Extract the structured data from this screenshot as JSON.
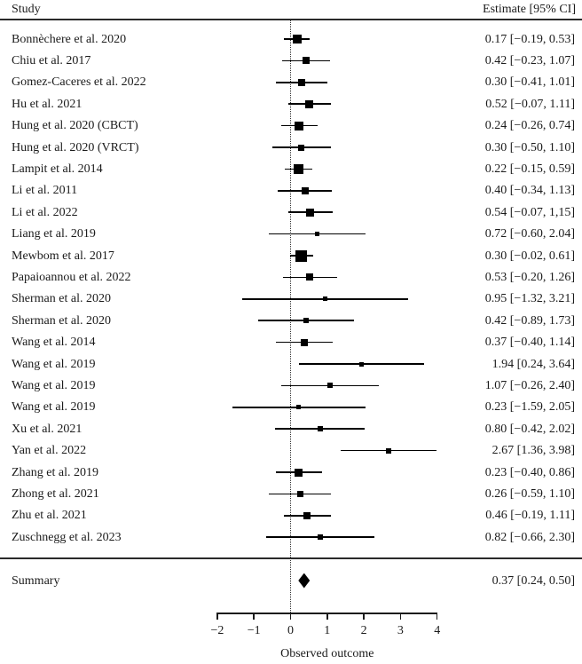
{
  "chart_data": {
    "type": "forest",
    "columns": {
      "study": "Study",
      "estimate": "Estimate [95% CI]"
    },
    "axis": {
      "xlabel": "Observed outcome",
      "tick_values": [
        -2,
        -1,
        0,
        1,
        2,
        3,
        4
      ],
      "tick_labels": [
        "−2",
        "−1",
        "0",
        "1",
        "2",
        "3",
        "4"
      ],
      "range": [
        -2,
        4
      ],
      "reference_line": 0
    },
    "studies": [
      {
        "name": "Bonnèchere et al. 2020",
        "estimate": 0.17,
        "ci": [
          -0.19,
          0.53
        ],
        "display": "0.17 [−0.19, 0.53]",
        "marker_size": 10
      },
      {
        "name": "Chiu et al. 2017",
        "estimate": 0.42,
        "ci": [
          -0.23,
          1.07
        ],
        "display": "0.42 [−0.23, 1.07]",
        "marker_size": 8
      },
      {
        "name": "Gomez-Caceres et al. 2022",
        "estimate": 0.3,
        "ci": [
          -0.41,
          1.01
        ],
        "display": "0.30 [−0.41, 1.01]",
        "marker_size": 8
      },
      {
        "name": "Hu et al. 2021",
        "estimate": 0.52,
        "ci": [
          -0.07,
          1.11
        ],
        "display": "0.52 [−0.07, 1.11]",
        "marker_size": 9
      },
      {
        "name": "Hung et al. 2020 (CBCT)",
        "estimate": 0.24,
        "ci": [
          -0.26,
          0.74
        ],
        "display": "0.24 [−0.26, 0.74]",
        "marker_size": 10
      },
      {
        "name": "Hung et al. 2020 (VRCT)",
        "estimate": 0.3,
        "ci": [
          -0.5,
          1.1
        ],
        "display": "0.30 [−0.50, 1.10]",
        "marker_size": 7
      },
      {
        "name": "Lampit et al. 2014",
        "estimate": 0.22,
        "ci": [
          -0.15,
          0.59
        ],
        "display": "0.22 [−0.15, 0.59]",
        "marker_size": 11
      },
      {
        "name": "Li et al. 2011",
        "estimate": 0.4,
        "ci": [
          -0.34,
          1.13
        ],
        "display": "0.40 [−0.34, 1.13]",
        "marker_size": 8
      },
      {
        "name": "Li et al. 2022",
        "estimate": 0.54,
        "ci": [
          -0.07,
          1.15
        ],
        "display": "0.54 [−0.07, 1,15]",
        "marker_size": 9
      },
      {
        "name": "Liang et al. 2019",
        "estimate": 0.72,
        "ci": [
          -0.6,
          2.04
        ],
        "display": "0.72 [−0.60, 2.04]",
        "marker_size": 5
      },
      {
        "name": "Mewbom et al. 2017",
        "estimate": 0.3,
        "ci": [
          -0.02,
          0.61
        ],
        "display": "0.30 [−0.02, 0.61]",
        "marker_size": 13
      },
      {
        "name": "Papaioannou et al. 2022",
        "estimate": 0.53,
        "ci": [
          -0.2,
          1.26
        ],
        "display": "0.53 [−0.20, 1.26]",
        "marker_size": 8
      },
      {
        "name": "Sherman et al. 2020",
        "estimate": 0.95,
        "ci": [
          -1.32,
          3.21
        ],
        "display": "0.95 [−1.32, 3.21]",
        "marker_size": 5
      },
      {
        "name": "Sherman et al. 2020",
        "estimate": 0.42,
        "ci": [
          -0.89,
          1.73
        ],
        "display": "0.42 [−0.89, 1.73]",
        "marker_size": 6
      },
      {
        "name": "Wang et al. 2014",
        "estimate": 0.37,
        "ci": [
          -0.4,
          1.14
        ],
        "display": "0.37 [−0.40, 1.14]",
        "marker_size": 8
      },
      {
        "name": "Wang et al. 2019",
        "estimate": 1.94,
        "ci": [
          0.24,
          3.64
        ],
        "display": "1.94 [0.24, 3.64]",
        "marker_size": 5
      },
      {
        "name": "Wang et al. 2019",
        "estimate": 1.07,
        "ci": [
          -0.26,
          2.4
        ],
        "display": "1.07 [−0.26, 2.40]",
        "marker_size": 6
      },
      {
        "name": "Wang et al. 2019",
        "estimate": 0.23,
        "ci": [
          -1.59,
          2.05
        ],
        "display": "0.23 [−1.59, 2.05]",
        "marker_size": 5
      },
      {
        "name": "Xu et al. 2021",
        "estimate": 0.8,
        "ci": [
          -0.42,
          2.02
        ],
        "display": "0.80 [−0.42, 2.02]",
        "marker_size": 6
      },
      {
        "name": "Yan et al. 2022",
        "estimate": 2.67,
        "ci": [
          1.36,
          3.98
        ],
        "display": "2.67 [1.36, 3.98]",
        "marker_size": 6
      },
      {
        "name": "Zhang et al. 2019",
        "estimate": 0.23,
        "ci": [
          -0.4,
          0.86
        ],
        "display": "0.23 [−0.40, 0.86]",
        "marker_size": 9
      },
      {
        "name": "Zhong et al. 2021",
        "estimate": 0.26,
        "ci": [
          -0.59,
          1.1
        ],
        "display": "0.26 [−0.59, 1.10]",
        "marker_size": 7
      },
      {
        "name": "Zhu et al. 2021",
        "estimate": 0.46,
        "ci": [
          -0.19,
          1.11
        ],
        "display": "0.46 [−0.19, 1.11]",
        "marker_size": 8
      },
      {
        "name": "Zuschnegg et al. 2023",
        "estimate": 0.82,
        "ci": [
          -0.66,
          2.3
        ],
        "display": "0.82 [−0.66, 2.30]",
        "marker_size": 6
      }
    ],
    "summary": {
      "name": "Summary",
      "estimate": 0.37,
      "ci": [
        0.24,
        0.5
      ],
      "display": "0.37 [0.24, 0.50]"
    }
  }
}
